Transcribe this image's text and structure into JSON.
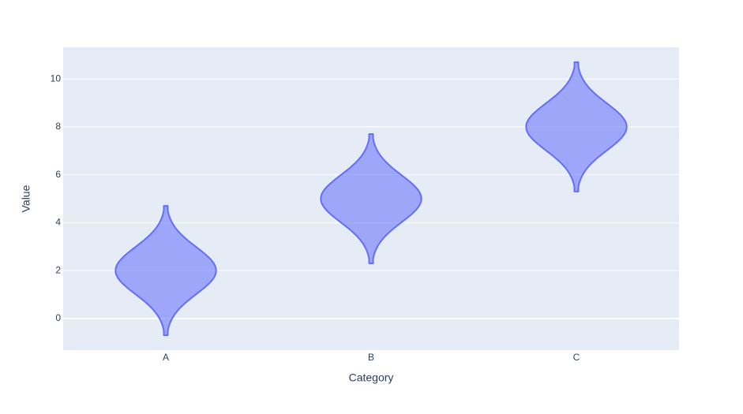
{
  "chart_data": {
    "type": "violin",
    "categories": [
      "A",
      "B",
      "C"
    ],
    "y_min": [
      -0.7,
      2.3,
      5.3
    ],
    "mode": [
      2,
      5,
      8
    ],
    "y_max": [
      4.7,
      7.7,
      10.7
    ],
    "color": "#636efa",
    "ylim": [
      -1.32,
      11.32
    ],
    "yticks": [
      0,
      2,
      4,
      6,
      8,
      10
    ],
    "grid": true,
    "x_label": "Category",
    "y_label": "Value"
  }
}
